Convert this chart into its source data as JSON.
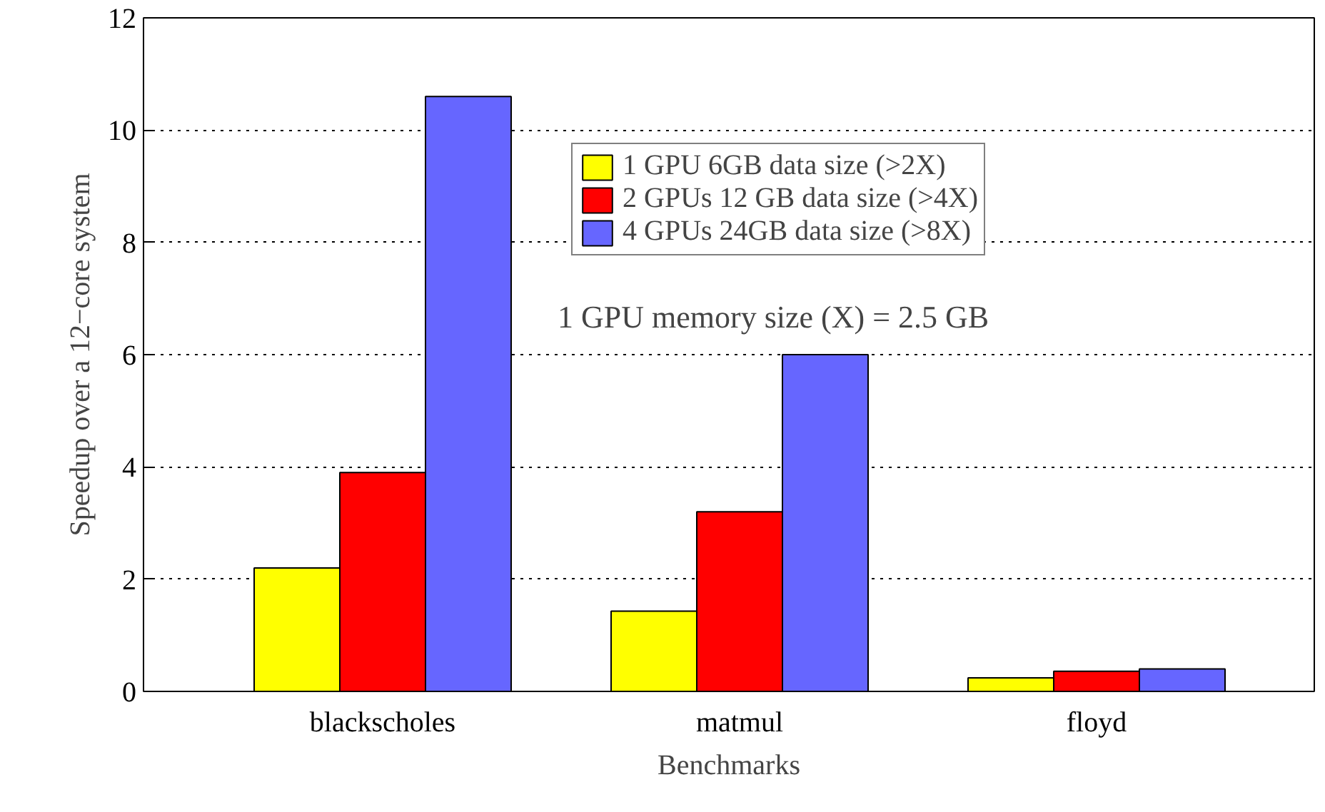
{
  "chart_data": {
    "type": "bar",
    "xlabel": "Benchmarks",
    "ylabel": "Speedup over a 12−core system",
    "categories": [
      "blackscholes",
      "matmul",
      "floyd"
    ],
    "series": [
      {
        "name": "1 GPU 6GB data size (>2X)",
        "color": "#ffff00",
        "values": [
          2.2,
          1.43,
          0.24
        ]
      },
      {
        "name": "2 GPUs 12 GB data size (>4X)",
        "color": "#ff0000",
        "values": [
          3.9,
          3.2,
          0.36
        ]
      },
      {
        "name": "4 GPUs 24GB data size (>8X)",
        "color": "#6666ff",
        "values": [
          10.6,
          6.0,
          0.4
        ]
      }
    ],
    "ylim": [
      0,
      12
    ],
    "yticks": [
      0,
      2,
      4,
      6,
      8,
      10,
      12
    ],
    "grid": "y",
    "legend": "top right",
    "annotations": [
      "1 GPU memory size (X) = 2.5 GB"
    ]
  }
}
